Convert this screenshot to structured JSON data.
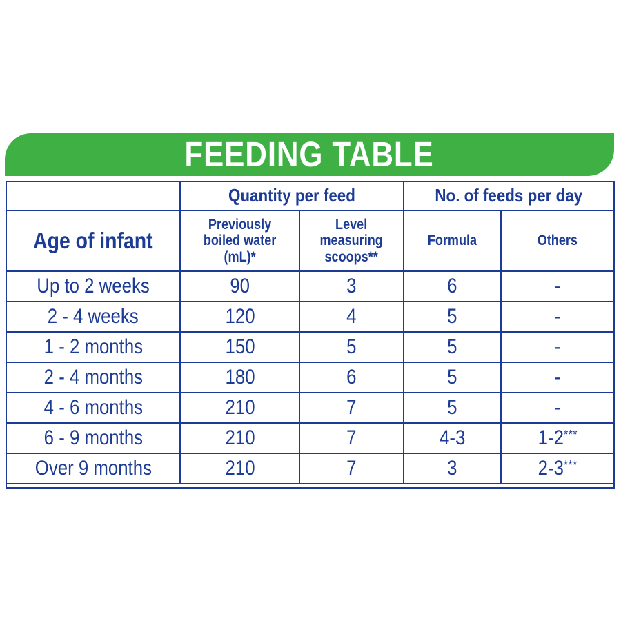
{
  "title": "FEEDING TABLE",
  "colors": {
    "green": "#3FB044",
    "blue": "#1C3B95",
    "title_text": "#FFFFFF"
  },
  "table": {
    "group_headers": {
      "quantity": "Quantity per feed",
      "feeds": "No. of feeds per day"
    },
    "column_headers": {
      "age": "Age of infant",
      "water": "Previously\nboiled water (mL)*",
      "scoops": "Level measuring\nscoops**",
      "formula": "Formula",
      "others": "Others"
    },
    "rows": [
      {
        "age": "Up to 2 weeks",
        "water": "90",
        "scoops": "3",
        "formula": "6",
        "others": "-",
        "others_sup": ""
      },
      {
        "age": "2 - 4 weeks",
        "water": "120",
        "scoops": "4",
        "formula": "5",
        "others": "-",
        "others_sup": ""
      },
      {
        "age": "1 - 2 months",
        "water": "150",
        "scoops": "5",
        "formula": "5",
        "others": "-",
        "others_sup": ""
      },
      {
        "age": "2 - 4 months",
        "water": "180",
        "scoops": "6",
        "formula": "5",
        "others": "-",
        "others_sup": ""
      },
      {
        "age": "4 - 6 months",
        "water": "210",
        "scoops": "7",
        "formula": "5",
        "others": "-",
        "others_sup": ""
      },
      {
        "age": "6 - 9 months",
        "water": "210",
        "scoops": "7",
        "formula": "4-3",
        "others": "1-2",
        "others_sup": "***"
      },
      {
        "age": "Over 9 months",
        "water": "210",
        "scoops": "7",
        "formula": "3",
        "others": "2-3",
        "others_sup": "***"
      }
    ]
  }
}
